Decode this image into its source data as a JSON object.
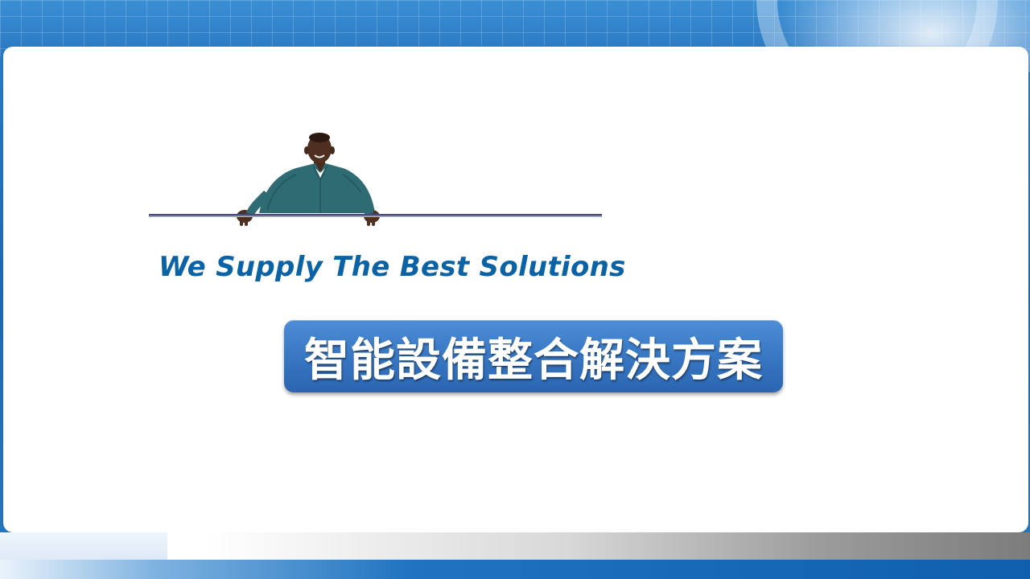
{
  "slide": {
    "tagline": "We Supply The Best Solutions",
    "solution_title": "智能設備整合解決方案"
  },
  "colors": {
    "header_blue": "#2f84cb",
    "tagline_blue": "#0b63a5",
    "box_blue_top": "#4e8ed6",
    "box_blue_bottom": "#2b65b0",
    "footer_blue": "#0f5fae"
  },
  "icons": {
    "illustration": "person-leaning-over-line"
  }
}
